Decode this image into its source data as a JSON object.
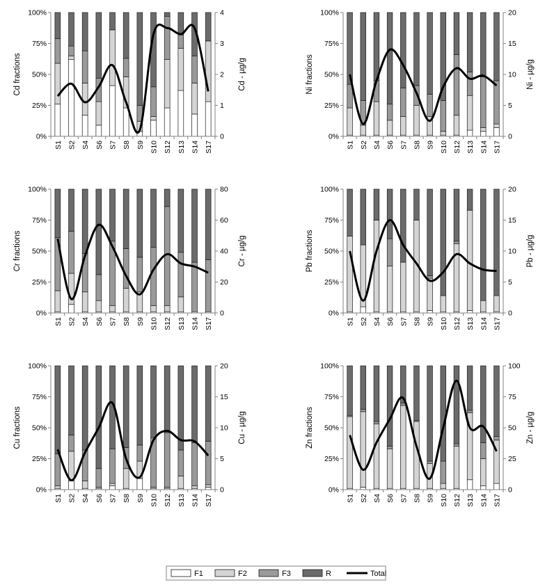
{
  "colors": {
    "F1": "#ffffff",
    "F2": "#d4d4d4",
    "F3": "#9a9a9a",
    "R": "#6b6b6b",
    "bar_stroke": "#1a1a1a",
    "total_line": "#000000",
    "axis": "#808080"
  },
  "legend": {
    "items": [
      {
        "key": "F1",
        "label": "F1",
        "kind": "box"
      },
      {
        "key": "F2",
        "label": "F2",
        "kind": "box"
      },
      {
        "key": "F3",
        "label": "F3",
        "kind": "box"
      },
      {
        "key": "R",
        "label": "R",
        "kind": "box"
      },
      {
        "key": "Total",
        "label": "Total",
        "kind": "line"
      }
    ]
  },
  "chart_data": [
    {
      "type": "bar",
      "stacked": true,
      "element": "Cd",
      "title": "",
      "ylabel": "Cd fractions",
      "y2label": "Cd - µg/g",
      "yticks": [
        "0%",
        "25%",
        "50%",
        "75%",
        "100%"
      ],
      "ylim": [
        0,
        100
      ],
      "y2lim": [
        0,
        4
      ],
      "y2ticks": [
        "0",
        "1",
        "2",
        "3",
        "4"
      ],
      "categories": [
        "S1",
        "S2",
        "S4",
        "S6",
        "S7",
        "S8",
        "S9",
        "S10",
        "S12",
        "S13",
        "S14",
        "S17"
      ],
      "series": [
        {
          "name": "F1",
          "values": [
            26,
            62,
            17,
            9,
            41,
            23,
            4,
            13,
            23,
            37,
            18,
            28
          ]
        },
        {
          "name": "F2",
          "values": [
            33,
            3,
            26,
            19,
            45,
            25,
            8,
            3,
            39,
            34,
            25,
            49
          ]
        },
        {
          "name": "F3",
          "values": [
            20,
            8,
            26,
            19,
            0,
            15,
            13,
            24,
            35,
            11,
            22,
            0
          ]
        },
        {
          "name": "R",
          "values": [
            21,
            27,
            31,
            53,
            14,
            37,
            75,
            60,
            3,
            18,
            35,
            23
          ]
        }
      ],
      "total": {
        "name": "Total",
        "values": [
          1.3,
          1.7,
          1.1,
          1.6,
          2.3,
          1.1,
          0.2,
          3.3,
          3.5,
          3.3,
          3.5,
          1.45
        ]
      }
    },
    {
      "type": "bar",
      "stacked": true,
      "element": "Ni",
      "title": "",
      "ylabel": "Ni fractions",
      "y2label": "Ni - µg/g",
      "yticks": [
        "0%",
        "25%",
        "50%",
        "75%",
        "100%"
      ],
      "ylim": [
        0,
        100
      ],
      "y2lim": [
        0,
        20
      ],
      "y2ticks": [
        "0",
        "5",
        "10",
        "15",
        "20"
      ],
      "categories": [
        "S1",
        "S2",
        "S4",
        "S6",
        "S7",
        "S8",
        "S9",
        "S10",
        "S12",
        "S13",
        "S14",
        "S17"
      ],
      "series": [
        {
          "name": "F1",
          "values": [
            1,
            1,
            1,
            1,
            1,
            1,
            1,
            1,
            1,
            5,
            4,
            7
          ]
        },
        {
          "name": "F2",
          "values": [
            22,
            8,
            27,
            12,
            15,
            24,
            15,
            3,
            16,
            28,
            3,
            3
          ]
        },
        {
          "name": "F3",
          "values": [
            19,
            20,
            17,
            13,
            23,
            16,
            18,
            25,
            49,
            19,
            41,
            35
          ]
        },
        {
          "name": "R",
          "values": [
            58,
            71,
            55,
            74,
            61,
            59,
            66,
            71,
            34,
            48,
            52,
            55
          ]
        }
      ],
      "total": {
        "name": "Total",
        "values": [
          10,
          2,
          9,
          14,
          11.5,
          7,
          2.5,
          8,
          11,
          9.3,
          9.8,
          8.2
        ]
      }
    },
    {
      "type": "bar",
      "stacked": true,
      "element": "Cr",
      "title": "",
      "ylabel": "Cr fractions",
      "y2label": "Cr - µg/g",
      "yticks": [
        "0%",
        "25%",
        "50%",
        "75%",
        "100%"
      ],
      "ylim": [
        0,
        100
      ],
      "y2lim": [
        0,
        80
      ],
      "y2ticks": [
        "0",
        "20",
        "40",
        "60",
        "80"
      ],
      "categories": [
        "S1",
        "S2",
        "S4",
        "S6",
        "S7",
        "S8",
        "S9",
        "S10",
        "S12",
        "S13",
        "S14",
        "S17"
      ],
      "series": [
        {
          "name": "F1",
          "values": [
            1,
            7,
            1,
            1,
            1,
            1,
            1,
            1,
            1,
            1,
            1,
            1
          ]
        },
        {
          "name": "F2",
          "values": [
            17,
            25,
            16,
            9,
            5,
            19,
            16,
            5,
            5,
            12,
            0,
            0
          ]
        },
        {
          "name": "F3",
          "values": [
            43,
            34,
            31,
            21,
            52,
            32,
            28,
            47,
            80,
            36,
            40,
            42
          ]
        },
        {
          "name": "R",
          "values": [
            39,
            34,
            52,
            69,
            42,
            48,
            55,
            47,
            14,
            51,
            59,
            57
          ]
        }
      ],
      "total": {
        "name": "Total",
        "values": [
          48,
          9,
          37,
          57,
          43,
          24,
          12,
          28,
          38,
          32,
          30,
          26
        ]
      }
    },
    {
      "type": "bar",
      "stacked": true,
      "element": "Pb",
      "title": "",
      "ylabel": "Pb fractions",
      "y2label": "Pb - µg/g",
      "yticks": [
        "0%",
        "25%",
        "50%",
        "75%",
        "100%"
      ],
      "ylim": [
        0,
        100
      ],
      "y2lim": [
        0,
        20
      ],
      "y2ticks": [
        "0",
        "5",
        "10",
        "15",
        "20"
      ],
      "categories": [
        "S1",
        "S2",
        "S4",
        "S6",
        "S7",
        "S8",
        "S9",
        "S10",
        "S12",
        "S13",
        "S14",
        "S17"
      ],
      "series": [
        {
          "name": "F1",
          "values": [
            1,
            5,
            1,
            1,
            1,
            1,
            2,
            1,
            1,
            2,
            1,
            1
          ]
        },
        {
          "name": "F2",
          "values": [
            61,
            50,
            74,
            37,
            40,
            74,
            26,
            13,
            55,
            81,
            9,
            13
          ]
        },
        {
          "name": "F3",
          "values": [
            0,
            0,
            0,
            22,
            0,
            0,
            2,
            0,
            2,
            0,
            0,
            0
          ]
        },
        {
          "name": "R",
          "values": [
            38,
            45,
            25,
            40,
            59,
            25,
            70,
            86,
            42,
            17,
            90,
            86
          ]
        }
      ],
      "total": {
        "name": "Total",
        "values": [
          10,
          2,
          10,
          15,
          11,
          8,
          5.2,
          6.6,
          9.5,
          8,
          7,
          6.8
        ]
      }
    },
    {
      "type": "bar",
      "stacked": true,
      "element": "Cu",
      "title": "",
      "ylabel": "Cu fractions",
      "y2label": "Cu - µg/g",
      "yticks": [
        "0%",
        "25%",
        "50%",
        "75%",
        "100%"
      ],
      "ylim": [
        0,
        100
      ],
      "y2lim": [
        0,
        20
      ],
      "y2ticks": [
        "0",
        "5",
        "10",
        "15",
        "20"
      ],
      "categories": [
        "S1",
        "S2",
        "S4",
        "S6",
        "S7",
        "S8",
        "S9",
        "S10",
        "S12",
        "S13",
        "S14",
        "S17"
      ],
      "series": [
        {
          "name": "F1",
          "values": [
            1,
            7,
            1,
            1,
            3,
            1,
            9,
            1,
            1,
            1,
            1,
            2
          ]
        },
        {
          "name": "F2",
          "values": [
            2,
            24,
            6,
            1,
            2,
            16,
            14,
            1,
            1,
            10,
            2,
            2
          ]
        },
        {
          "name": "F3",
          "values": [
            26,
            13,
            25,
            15,
            28,
            17,
            13,
            40,
            44,
            21,
            35,
            35
          ]
        },
        {
          "name": "R",
          "values": [
            71,
            56,
            68,
            83,
            67,
            66,
            64,
            58,
            54,
            68,
            62,
            61
          ]
        }
      ],
      "total": {
        "name": "Total",
        "values": [
          6.5,
          1.5,
          6,
          10,
          14,
          5,
          2,
          8,
          9.5,
          8,
          7.8,
          5.5
        ]
      }
    },
    {
      "type": "bar",
      "stacked": true,
      "element": "Zn",
      "title": "",
      "ylabel": "Zn fractions",
      "y2label": "Zn - µg/g",
      "yticks": [
        "0%",
        "25%",
        "50%",
        "75%",
        "100%"
      ],
      "ylim": [
        0,
        100
      ],
      "y2lim": [
        0,
        100
      ],
      "y2ticks": [
        "0",
        "25",
        "50",
        "75",
        "100"
      ],
      "categories": [
        "S1",
        "S2",
        "S4",
        "S6",
        "S7",
        "S8",
        "S9",
        "S10",
        "S12",
        "S13",
        "S14",
        "S17"
      ],
      "series": [
        {
          "name": "F1",
          "values": [
            1,
            2,
            1,
            1,
            1,
            1,
            1,
            1,
            1,
            8,
            3,
            5
          ]
        },
        {
          "name": "F2",
          "values": [
            58,
            61,
            52,
            32,
            67,
            54,
            20,
            4,
            34,
            54,
            22,
            35
          ]
        },
        {
          "name": "F3",
          "values": [
            1,
            2,
            2,
            2,
            2,
            1,
            2,
            18,
            2,
            2,
            13,
            3
          ]
        },
        {
          "name": "R",
          "values": [
            40,
            35,
            45,
            65,
            30,
            44,
            77,
            77,
            63,
            36,
            62,
            57
          ]
        }
      ],
      "total": {
        "name": "Total",
        "values": [
          44,
          16,
          38,
          57,
          74,
          35,
          9,
          50,
          88,
          50,
          51,
          31
        ]
      }
    }
  ]
}
